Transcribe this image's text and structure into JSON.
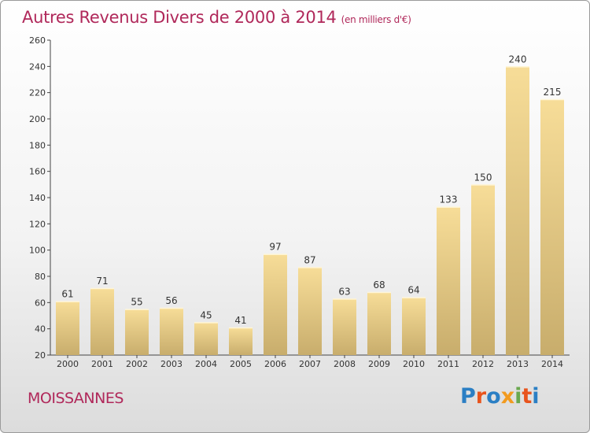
{
  "header": {
    "title": "Autres Revenus Divers de 2000 à 2014",
    "subtitle": "(en milliers d'€)"
  },
  "footer": {
    "city": "MOISSANNES",
    "logo": {
      "text": "Proxiti",
      "letter_colors": [
        "#2b7fc4",
        "#e8541d",
        "#2b7fc4",
        "#f29b1f",
        "#6aa84f",
        "#e8541d",
        "#2b7fc4"
      ]
    }
  },
  "chart_data": {
    "type": "bar",
    "categories": [
      "2000",
      "2001",
      "2002",
      "2003",
      "2004",
      "2005",
      "2006",
      "2007",
      "2008",
      "2009",
      "2010",
      "2011",
      "2012",
      "2013",
      "2014"
    ],
    "values": [
      61,
      71,
      55,
      56,
      45,
      41,
      97,
      87,
      63,
      68,
      64,
      133,
      150,
      240,
      215
    ],
    "ylim": [
      20,
      260
    ],
    "yticks": [
      20,
      40,
      60,
      80,
      100,
      120,
      140,
      160,
      180,
      200,
      220,
      240,
      260
    ],
    "grid": false,
    "legend": "none",
    "bar_color_top": "#f7dd98",
    "bar_color_bottom": "#c8ad6c"
  }
}
